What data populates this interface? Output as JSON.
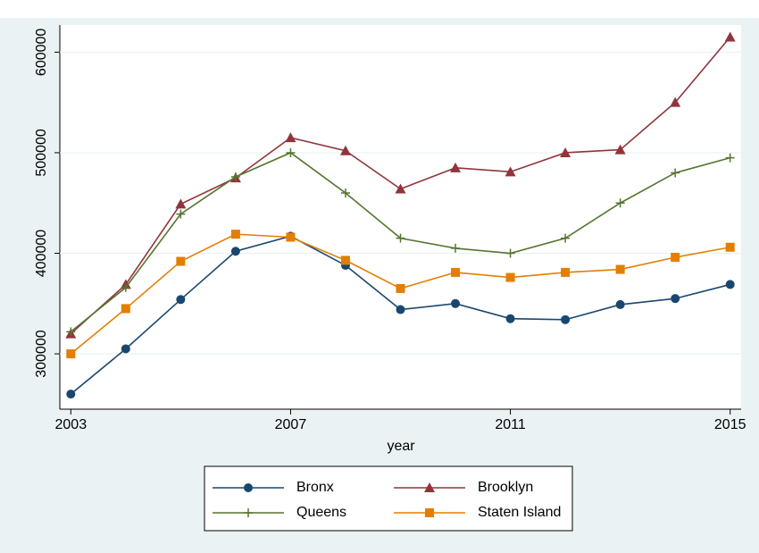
{
  "chart_data": {
    "type": "line",
    "x": [
      2003,
      2004,
      2005,
      2006,
      2007,
      2008,
      2009,
      2010,
      2011,
      2012,
      2013,
      2014,
      2015
    ],
    "x_label": "year",
    "series": [
      {
        "name": "Bronx",
        "color": "#1a476f",
        "marker": "circle",
        "values": [
          260000,
          305000,
          354000,
          402000,
          417000,
          388000,
          344000,
          350000,
          335000,
          334000,
          349000,
          355000,
          369000
        ]
      },
      {
        "name": "Brooklyn",
        "color": "#90353b",
        "marker": "triangle",
        "values": [
          320000,
          369000,
          449000,
          475000,
          515000,
          502000,
          464000,
          485000,
          481000,
          500000,
          503000,
          550000,
          615000
        ]
      },
      {
        "name": "Queens",
        "color": "#55752f",
        "marker": "plus",
        "values": [
          322000,
          366000,
          439000,
          476000,
          500000,
          460000,
          415000,
          405000,
          400000,
          415000,
          450000,
          480000,
          495000
        ]
      },
      {
        "name": "Staten Island",
        "color": "#e37e00",
        "marker": "square",
        "values": [
          300000,
          345000,
          392000,
          419000,
          416000,
          393000,
          365000,
          381000,
          376000,
          381000,
          384000,
          396000,
          406000
        ]
      }
    ],
    "xlim": [
      2002.8,
      2015.2
    ],
    "xticks": [
      2003,
      2007,
      2011,
      2015
    ],
    "ylim": [
      245000,
      627000
    ],
    "yticks": [
      300000,
      400000,
      500000,
      600000
    ],
    "grid": true,
    "legend": "bottom"
  }
}
